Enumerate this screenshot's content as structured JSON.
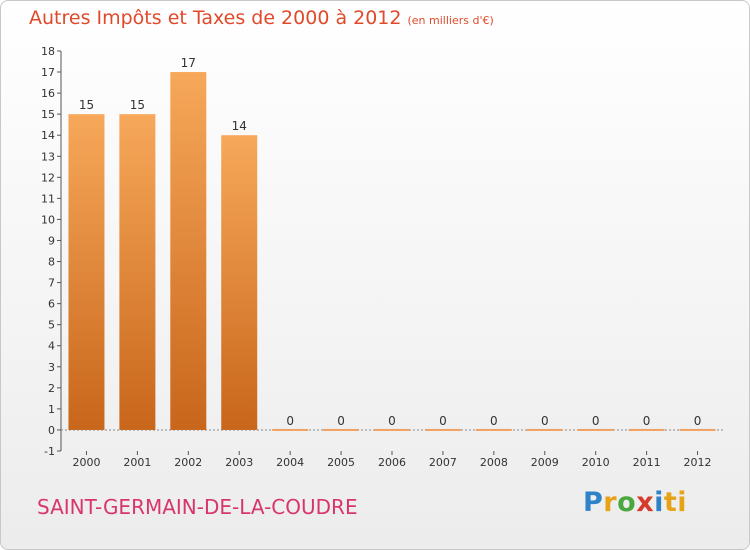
{
  "header": {
    "title": "Autres Impôts et Taxes de 2000 à 2012",
    "unit": "(en milliers d'€)"
  },
  "footer": {
    "commune": "SAINT-GERMAIN-DE-LA-COUDRE",
    "logo": [
      "P",
      "r",
      "o",
      "x",
      "i",
      "ti"
    ]
  },
  "colors": {
    "bar_light": "#f7a85a",
    "bar_dark": "#c8661b",
    "title": "#e0492a",
    "commune": "#d8366b"
  },
  "chart_data": {
    "type": "bar",
    "categories": [
      "2000",
      "2001",
      "2002",
      "2003",
      "2004",
      "2005",
      "2006",
      "2007",
      "2008",
      "2009",
      "2010",
      "2011",
      "2012"
    ],
    "values": [
      15,
      15,
      17,
      14,
      0,
      0,
      0,
      0,
      0,
      0,
      0,
      0,
      0
    ],
    "data_labels": [
      "15",
      "15",
      "17",
      "14",
      "0",
      "0",
      "0",
      "0",
      "0",
      "0",
      "0",
      "0",
      "0"
    ],
    "title": "Autres Impôts et Taxes de 2000 à 2012",
    "xlabel": "",
    "ylabel": "",
    "ylim": [
      -1,
      18
    ],
    "yticks": [
      -1,
      0,
      1,
      2,
      3,
      4,
      5,
      6,
      7,
      8,
      9,
      10,
      11,
      12,
      13,
      14,
      15,
      16,
      17,
      18
    ],
    "ytick_labels": [
      "-1",
      "0",
      "1",
      "2",
      "3",
      "4",
      "5",
      "6",
      "7",
      "8",
      "9",
      "10",
      "11",
      "12",
      "13",
      "14",
      "15",
      "16",
      "17",
      "18"
    ],
    "grid": false,
    "legend": "none"
  }
}
